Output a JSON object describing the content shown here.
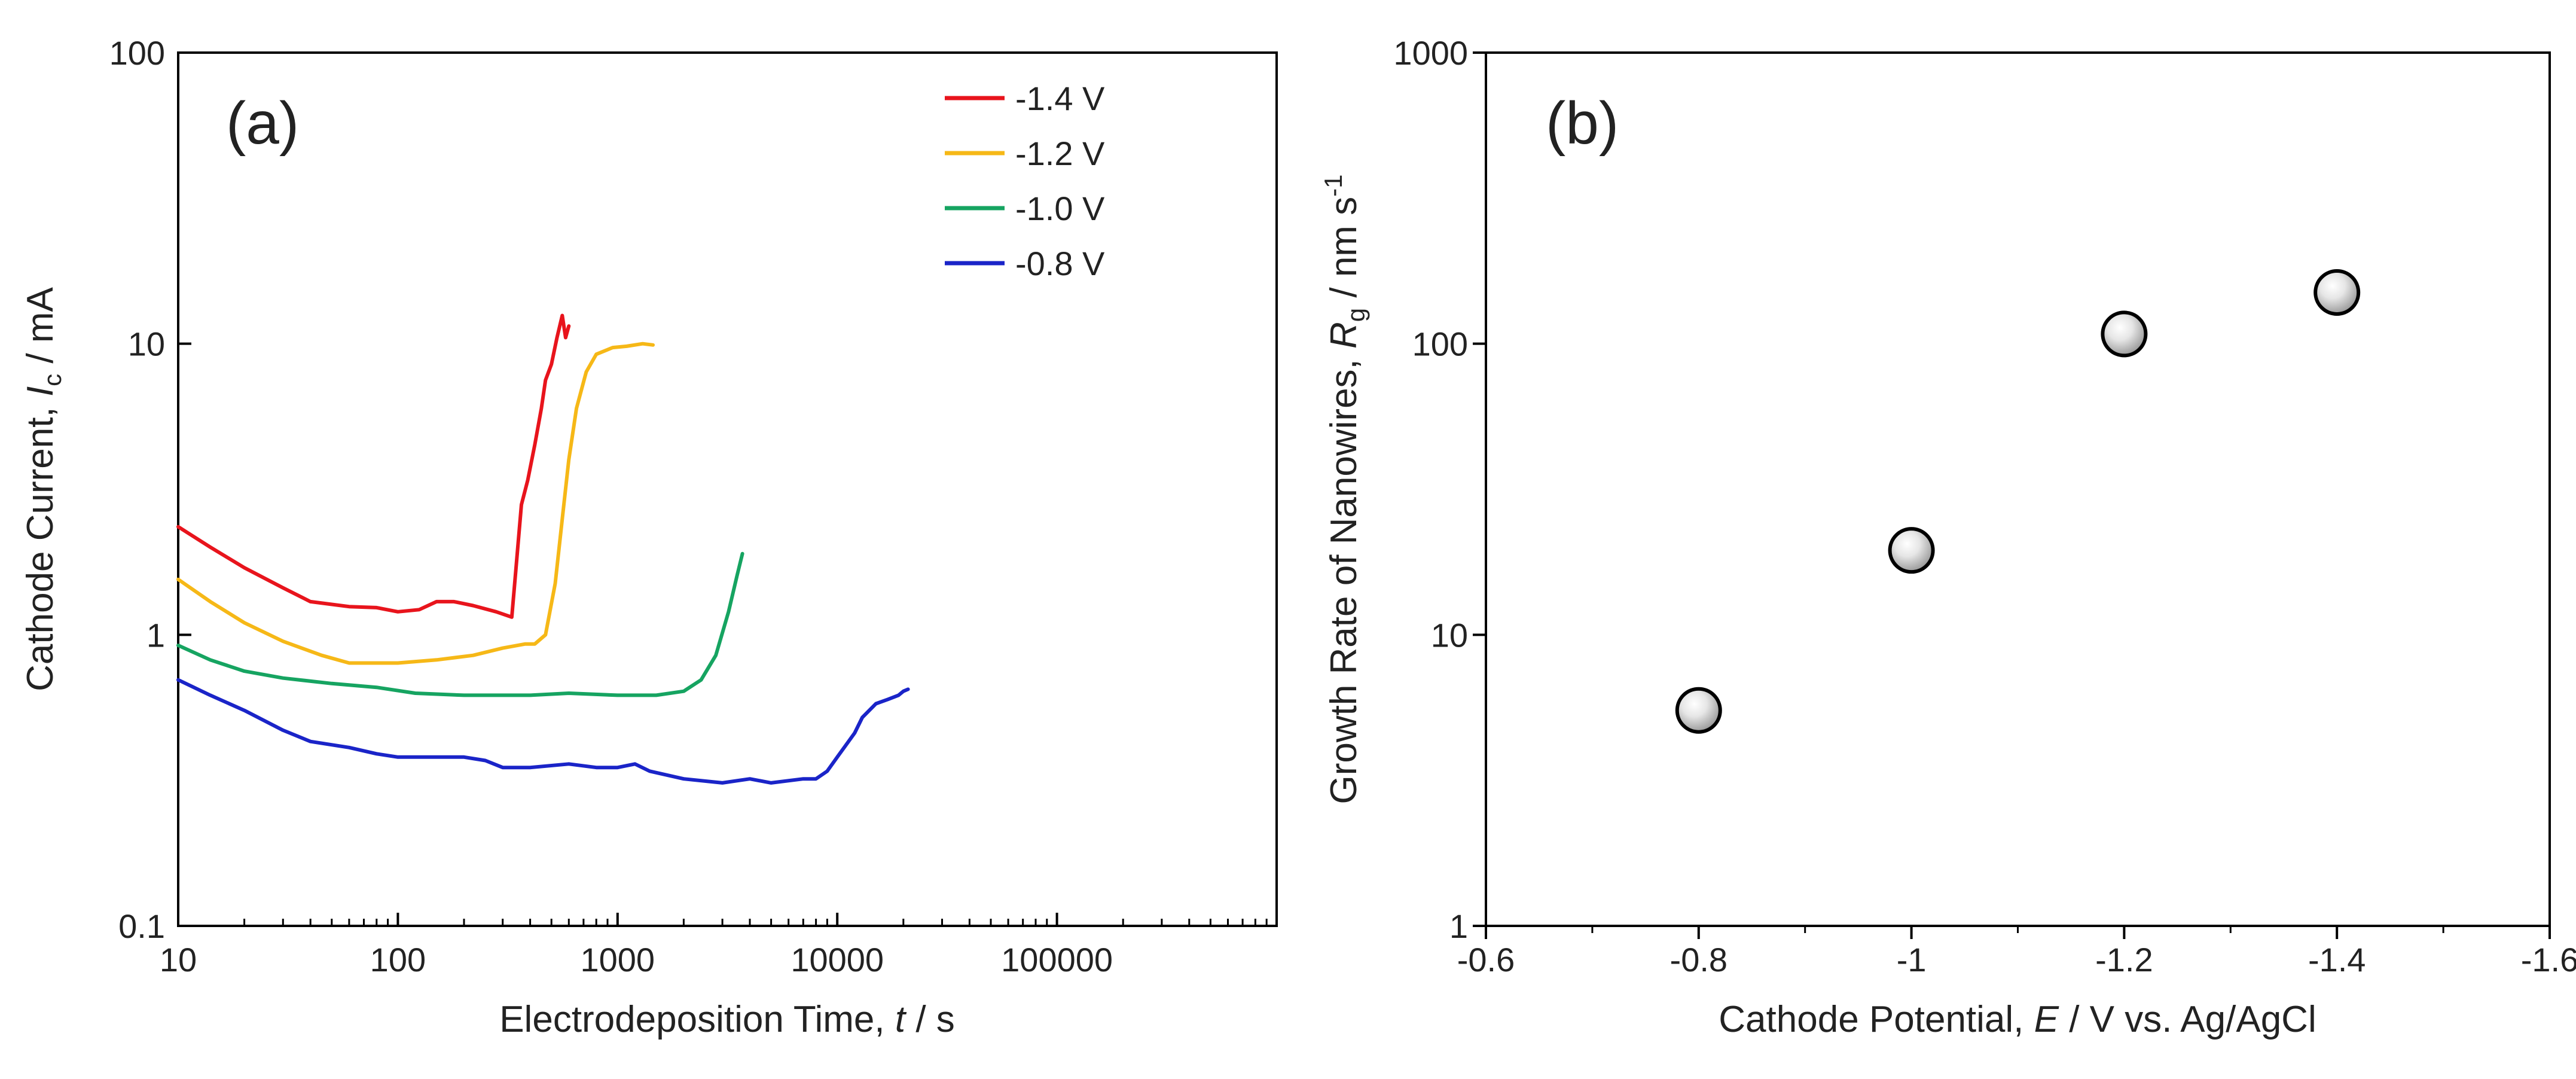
{
  "chart_data": [
    {
      "panel": "(a)",
      "type": "line",
      "xscale": "log",
      "yscale": "log",
      "xlim": [
        10,
        1000000
      ],
      "ylim": [
        0.1,
        100
      ],
      "xticks": [
        "10",
        "100",
        "1000",
        "10000",
        "100000"
      ],
      "yticks": [
        "0.1",
        "1",
        "10",
        "100"
      ],
      "xlabel_text": "Electrodeposition Time, ",
      "xlabel_var": "t",
      "xlabel_unit": " / s",
      "ylabel_text": "Cathode Current, ",
      "ylabel_var": "I",
      "ylabel_sub": "c",
      "ylabel_unit": " / mA",
      "legend_position": "top-right",
      "series": [
        {
          "name": "-1.4 V",
          "color": "#e8141c",
          "points": [
            [
              10,
              2.35
            ],
            [
              14,
              2.0
            ],
            [
              20,
              1.7
            ],
            [
              30,
              1.45
            ],
            [
              40,
              1.3
            ],
            [
              60,
              1.25
            ],
            [
              80,
              1.24
            ],
            [
              100,
              1.2
            ],
            [
              125,
              1.22
            ],
            [
              150,
              1.3
            ],
            [
              180,
              1.3
            ],
            [
              220,
              1.26
            ],
            [
              280,
              1.2
            ],
            [
              330,
              1.15
            ],
            [
              345,
              1.7
            ],
            [
              365,
              2.8
            ],
            [
              390,
              3.4
            ],
            [
              420,
              4.5
            ],
            [
              450,
              6.0
            ],
            [
              470,
              7.5
            ],
            [
              500,
              8.5
            ],
            [
              530,
              10.5
            ],
            [
              560,
              12.5
            ],
            [
              580,
              10.5
            ],
            [
              600,
              11.5
            ]
          ]
        },
        {
          "name": "-1.2 V",
          "color": "#f6b817",
          "points": [
            [
              10,
              1.55
            ],
            [
              14,
              1.3
            ],
            [
              20,
              1.1
            ],
            [
              30,
              0.95
            ],
            [
              45,
              0.85
            ],
            [
              60,
              0.8
            ],
            [
              100,
              0.8
            ],
            [
              150,
              0.82
            ],
            [
              220,
              0.85
            ],
            [
              300,
              0.9
            ],
            [
              380,
              0.93
            ],
            [
              420,
              0.93
            ],
            [
              470,
              1.0
            ],
            [
              520,
              1.5
            ],
            [
              560,
              2.5
            ],
            [
              600,
              4.0
            ],
            [
              650,
              6.0
            ],
            [
              720,
              8.0
            ],
            [
              800,
              9.2
            ],
            [
              950,
              9.7
            ],
            [
              1100,
              9.8
            ],
            [
              1300,
              10.0
            ],
            [
              1450,
              9.9
            ]
          ]
        },
        {
          "name": "-1.0 V",
          "color": "#16a461",
          "points": [
            [
              10,
              0.92
            ],
            [
              14,
              0.82
            ],
            [
              20,
              0.75
            ],
            [
              30,
              0.71
            ],
            [
              50,
              0.68
            ],
            [
              80,
              0.66
            ],
            [
              120,
              0.63
            ],
            [
              200,
              0.62
            ],
            [
              400,
              0.62
            ],
            [
              600,
              0.63
            ],
            [
              1000,
              0.62
            ],
            [
              1500,
              0.62
            ],
            [
              2000,
              0.64
            ],
            [
              2400,
              0.7
            ],
            [
              2800,
              0.85
            ],
            [
              3200,
              1.2
            ],
            [
              3500,
              1.6
            ],
            [
              3700,
              1.9
            ]
          ]
        },
        {
          "name": "-0.8 V",
          "color": "#1a24c8",
          "points": [
            [
              10,
              0.7
            ],
            [
              14,
              0.62
            ],
            [
              20,
              0.55
            ],
            [
              30,
              0.47
            ],
            [
              40,
              0.43
            ],
            [
              60,
              0.41
            ],
            [
              80,
              0.39
            ],
            [
              100,
              0.38
            ],
            [
              150,
              0.38
            ],
            [
              200,
              0.38
            ],
            [
              250,
              0.37
            ],
            [
              300,
              0.35
            ],
            [
              400,
              0.35
            ],
            [
              600,
              0.36
            ],
            [
              800,
              0.35
            ],
            [
              1000,
              0.35
            ],
            [
              1200,
              0.36
            ],
            [
              1400,
              0.34
            ],
            [
              2000,
              0.32
            ],
            [
              3000,
              0.31
            ],
            [
              4000,
              0.32
            ],
            [
              5000,
              0.31
            ],
            [
              7000,
              0.32
            ],
            [
              8000,
              0.32
            ],
            [
              9000,
              0.34
            ],
            [
              10000,
              0.38
            ],
            [
              11000,
              0.42
            ],
            [
              12000,
              0.46
            ],
            [
              13000,
              0.52
            ],
            [
              15000,
              0.58
            ],
            [
              17000,
              0.6
            ],
            [
              19000,
              0.62
            ],
            [
              20000,
              0.64
            ],
            [
              21000,
              0.65
            ]
          ]
        }
      ]
    },
    {
      "panel": "(b)",
      "type": "scatter",
      "xscale": "linear",
      "yscale": "log",
      "xlim": [
        -0.6,
        -1.6
      ],
      "ylim": [
        1,
        1000
      ],
      "xticks": [
        "-0.6",
        "-0.8",
        "-1",
        "-1.2",
        "-1.4",
        "-1.6"
      ],
      "yticks": [
        "1",
        "10",
        "100",
        "1000"
      ],
      "xlabel_text": "Cathode Potential, ",
      "xlabel_var": "E",
      "xlabel_unit": " / V vs. Ag/AgCl",
      "ylabel_text": "Growth Rate of Nanowires, ",
      "ylabel_var": "R",
      "ylabel_sub": "g",
      "ylabel_unit": " / nm s",
      "ylabel_sup": "-1",
      "points": [
        [
          -0.8,
          5.5
        ],
        [
          -1.0,
          19.5
        ],
        [
          -1.2,
          108
        ],
        [
          -1.4,
          150
        ]
      ]
    }
  ]
}
